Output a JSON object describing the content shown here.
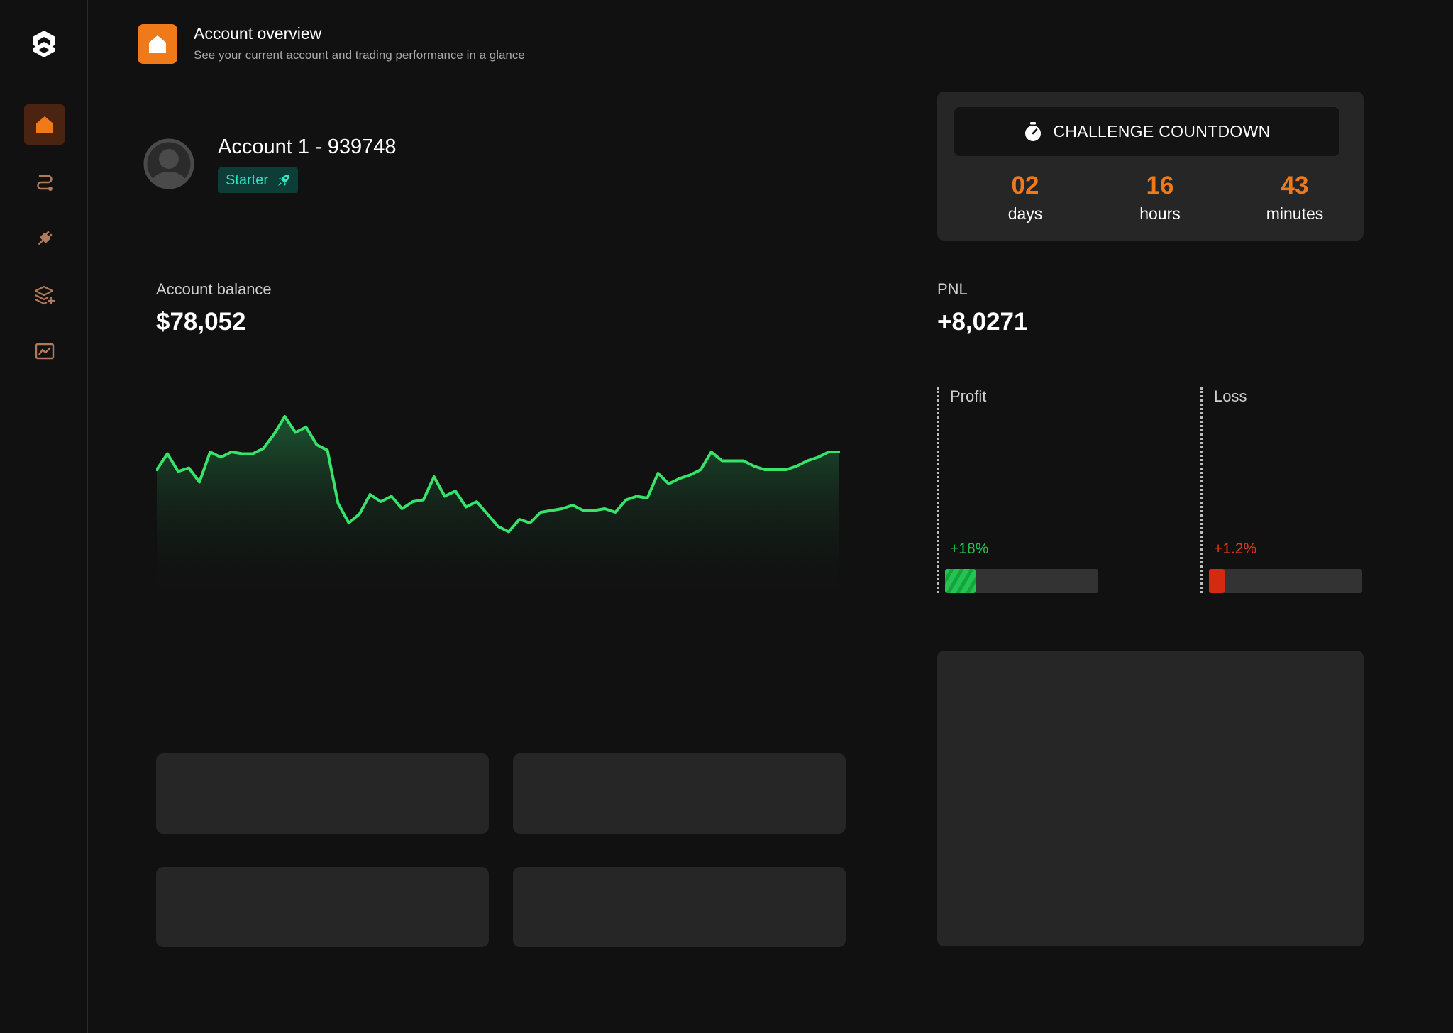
{
  "header": {
    "title": "Account overview",
    "subtitle": "See your current account and trading performance in a glance",
    "icon": "home-icon"
  },
  "sidebar": {
    "logo": "logo-icon",
    "items": [
      {
        "icon": "home-icon",
        "active": true
      },
      {
        "icon": "route-icon",
        "active": false
      },
      {
        "icon": "plug-icon",
        "active": false
      },
      {
        "icon": "layers-add-icon",
        "active": false
      },
      {
        "icon": "chart-image-icon",
        "active": false
      }
    ]
  },
  "account": {
    "name": "Account 1 - 939748",
    "plan": "Starter",
    "plan_icon": "rocket-icon"
  },
  "countdown": {
    "title": "CHALLENGE COUNTDOWN",
    "icon": "stopwatch-icon",
    "days": "02",
    "days_label": "days",
    "hours": "16",
    "hours_label": "hours",
    "minutes": "43",
    "minutes_label": "minutes"
  },
  "balance": {
    "label": "Account balance",
    "value": "$78,052"
  },
  "pnl": {
    "label": "PNL",
    "value": "+8,0271",
    "profit_label": "Profit",
    "profit_pct": "+18%",
    "profit_fraction": 0.2,
    "loss_label": "Loss",
    "loss_pct": "+1.2%",
    "loss_fraction": 0.1
  },
  "colors": {
    "accent": "#f07a1a",
    "line": "#39e36a",
    "profit": "#22c552",
    "loss": "#d42a12",
    "badge_text": "#2ee6c5"
  },
  "chart_data": {
    "type": "area",
    "title": "",
    "xlabel": "",
    "ylabel": "",
    "grid": false,
    "x": [
      0,
      1,
      2,
      3,
      4,
      5,
      6,
      7,
      8,
      9,
      10,
      11,
      12,
      13,
      14,
      15,
      16,
      17,
      18,
      19,
      20,
      21,
      22,
      23,
      24,
      25,
      26,
      27,
      28,
      29,
      30,
      31,
      32,
      33,
      34,
      35,
      36,
      37,
      38,
      39,
      40,
      41,
      42,
      43,
      44,
      45,
      46,
      47,
      48,
      49,
      50,
      51,
      52,
      53,
      54,
      55,
      56,
      57,
      58,
      59,
      60,
      61,
      62,
      63,
      64
    ],
    "series": [
      {
        "values": [
          0.64,
          0.73,
          0.63,
          0.65,
          0.57,
          0.74,
          0.71,
          0.74,
          0.73,
          0.73,
          0.76,
          0.84,
          0.94,
          0.85,
          0.88,
          0.78,
          0.75,
          0.45,
          0.34,
          0.39,
          0.5,
          0.46,
          0.49,
          0.42,
          0.46,
          0.47,
          0.6,
          0.49,
          0.52,
          0.43,
          0.46,
          0.39,
          0.32,
          0.29,
          0.36,
          0.34,
          0.4,
          0.41,
          0.42,
          0.44,
          0.41,
          0.41,
          0.42,
          0.4,
          0.47,
          0.49,
          0.48,
          0.62,
          0.56,
          0.59,
          0.61,
          0.64,
          0.74,
          0.69,
          0.69,
          0.69,
          0.66,
          0.64,
          0.64,
          0.64,
          0.66,
          0.69,
          0.71,
          0.74,
          0.74
        ]
      }
    ]
  }
}
